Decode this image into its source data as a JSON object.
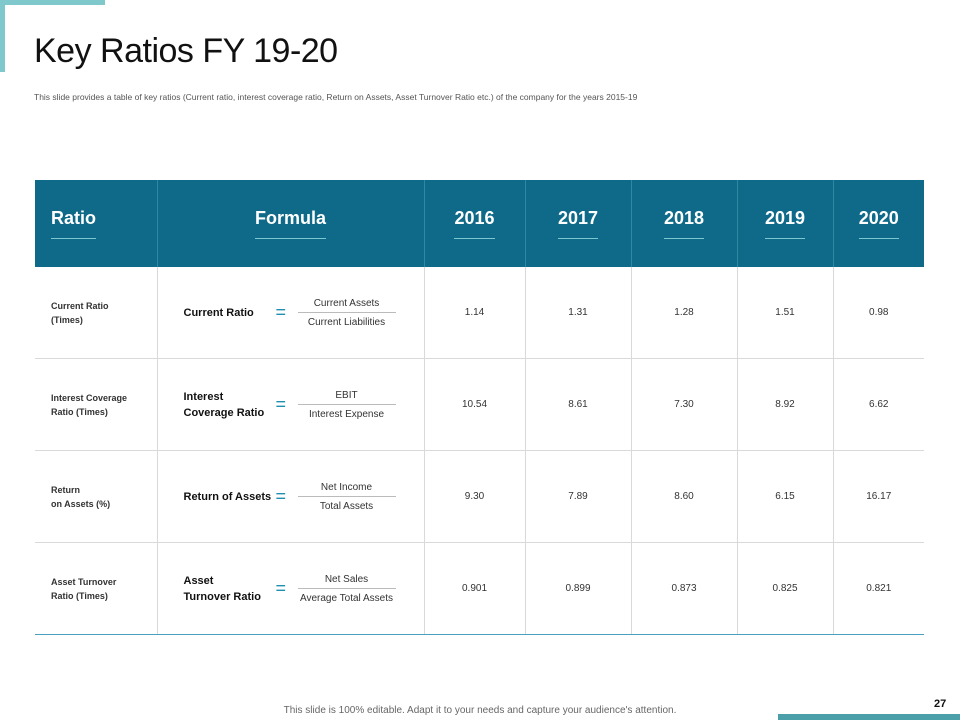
{
  "slide": {
    "title": "Key Ratios FY 19-20",
    "subtitle": "This slide provides a table of key ratios (Current ratio, interest coverage ratio, Return on Assets, Asset Turnover Ratio etc.) of the company for the years 2015-19",
    "footer": "This slide is 100% editable. Adapt it to your needs and capture your audience's attention.",
    "page_number": "27",
    "accent_color": "#0f6a8a"
  },
  "table": {
    "headers": [
      "Ratio",
      "Formula",
      "2016",
      "2017",
      "2018",
      "2019",
      "2020"
    ],
    "rows": [
      {
        "ratio_line1": "Current Ratio",
        "ratio_line2": "(Times)",
        "formula_name_line1": "Current Ratio",
        "formula_name_line2": "",
        "equals": "=",
        "numerator": "Current Assets",
        "denominator": "Current Liabilities",
        "values": [
          "1.14",
          "1.31",
          "1.28",
          "1.51",
          "0.98"
        ]
      },
      {
        "ratio_line1": "Interest Coverage",
        "ratio_line2": "Ratio (Times)",
        "formula_name_line1": "Interest",
        "formula_name_line2": "Coverage Ratio",
        "equals": "=",
        "numerator": "EBIT",
        "denominator": "Interest Expense",
        "values": [
          "10.54",
          "8.61",
          "7.30",
          "8.92",
          "6.62"
        ]
      },
      {
        "ratio_line1": "Return",
        "ratio_line2": "on Assets (%)",
        "formula_name_line1": "Return of Assets",
        "formula_name_line2": "",
        "equals": "=",
        "numerator": "Net Income",
        "denominator": "Total Assets",
        "values": [
          "9.30",
          "7.89",
          "8.60",
          "6.15",
          "16.17"
        ]
      },
      {
        "ratio_line1": "Asset Turnover",
        "ratio_line2": "Ratio (Times)",
        "formula_name_line1": "Asset",
        "formula_name_line2": "Turnover Ratio",
        "equals": "=",
        "numerator": "Net Sales",
        "denominator": "Average Total Assets",
        "values": [
          "0.901",
          "0.899",
          "0.873",
          "0.825",
          "0.821"
        ]
      }
    ]
  }
}
